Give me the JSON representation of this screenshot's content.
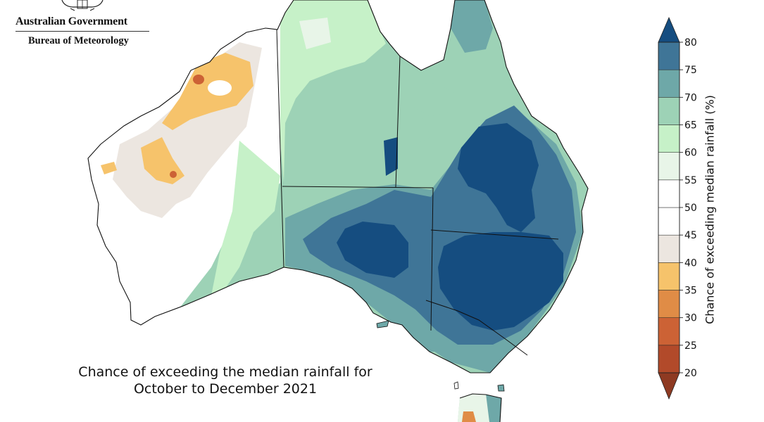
{
  "header": {
    "agency": "Australian Government",
    "bureau": "Bureau of Meteorology",
    "crest": "coat-of-arms-icon"
  },
  "map": {
    "region": "Australia",
    "caption_line1": "Chance of exceeding the median rainfall for",
    "caption_line2": "October to December 2021",
    "state_borders": true
  },
  "legend": {
    "title": "Chance of exceeding median rainfall (%)",
    "ticks": [
      "20",
      "25",
      "30",
      "35",
      "40",
      "45",
      "50",
      "55",
      "60",
      "65",
      "70",
      "75",
      "80"
    ],
    "bins": [
      {
        "range": "below 20",
        "color": "#8e3a22"
      },
      {
        "range": "20-25",
        "color": "#b24a2a"
      },
      {
        "range": "25-30",
        "color": "#cc6235"
      },
      {
        "range": "30-35",
        "color": "#e08c46"
      },
      {
        "range": "35-40",
        "color": "#f6c36b"
      },
      {
        "range": "40-45",
        "color": "#ece6e0"
      },
      {
        "range": "45-50",
        "color": "#ffffff"
      },
      {
        "range": "50-55",
        "color": "#ffffff"
      },
      {
        "range": "55-60",
        "color": "#e8f5e8"
      },
      {
        "range": "60-65",
        "color": "#c6f1c8"
      },
      {
        "range": "65-70",
        "color": "#9dd2b6"
      },
      {
        "range": "70-75",
        "color": "#6ea8a8"
      },
      {
        "range": "75-80",
        "color": "#3f7597"
      },
      {
        "range": "above 80",
        "color": "#154d80"
      }
    ]
  }
}
